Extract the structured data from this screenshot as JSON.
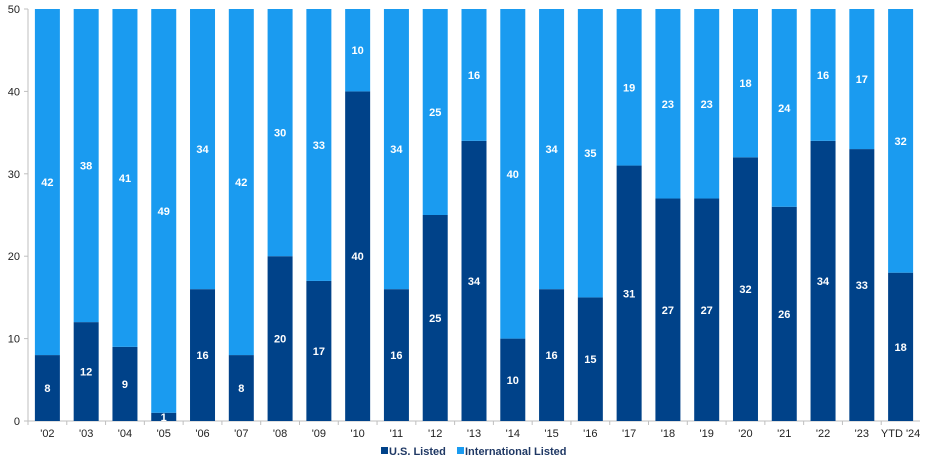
{
  "chart_data": {
    "type": "bar",
    "stacked": true,
    "categories": [
      "'02",
      "'03",
      "'04",
      "'05",
      "'06",
      "'07",
      "'08",
      "'09",
      "'10",
      "'11",
      "'12",
      "'13",
      "'14",
      "'15",
      "'16",
      "'17",
      "'18",
      "'19",
      "'20",
      "'21",
      "'22",
      "'23",
      "YTD '24"
    ],
    "series": [
      {
        "name": "U.S. Listed",
        "color": "#004289",
        "values": [
          8,
          12,
          9,
          1,
          16,
          8,
          20,
          17,
          40,
          16,
          25,
          34,
          10,
          16,
          15,
          31,
          27,
          27,
          32,
          26,
          34,
          33,
          18
        ]
      },
      {
        "name": "International Listed",
        "color": "#1a9bf0",
        "values": [
          42,
          38,
          41,
          49,
          34,
          42,
          30,
          33,
          10,
          34,
          25,
          16,
          40,
          34,
          35,
          19,
          23,
          23,
          18,
          24,
          16,
          17,
          32
        ]
      }
    ],
    "ylim": [
      0,
      50
    ],
    "yticks": [
      0,
      10,
      20,
      30,
      40,
      50
    ],
    "grid": false,
    "legend": "bottom-center"
  }
}
